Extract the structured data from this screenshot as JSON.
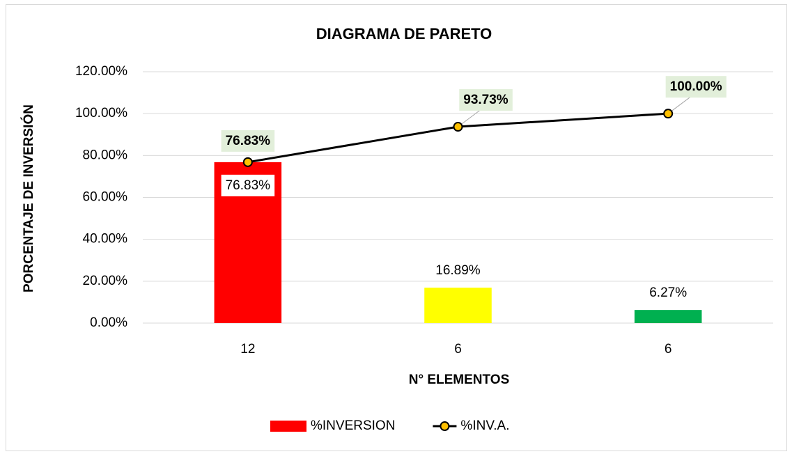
{
  "chart_data": {
    "type": "bar",
    "title": "DIAGRAMA DE PARETO",
    "y_label": "PORCENTAJE DE INVERSIÓN",
    "x_label": "N° ELEMENTOS",
    "categories": [
      "12",
      "6",
      "6"
    ],
    "series": [
      {
        "name": "%INVERSION",
        "type": "bar",
        "colors": [
          "#ff0000",
          "#ffff00",
          "#00b050"
        ],
        "values": [
          76.83,
          16.89,
          6.27
        ],
        "value_labels": [
          "76.83%",
          "16.89%",
          "6.27%"
        ]
      },
      {
        "name": "%INV.A.",
        "type": "line",
        "color": "#000000",
        "marker_color": "#ffc000",
        "values": [
          76.83,
          93.73,
          100
        ],
        "value_labels": [
          "76.83%",
          "93.73%",
          "100.00%"
        ]
      }
    ],
    "ylim": [
      0,
      120
    ],
    "yticks": [
      {
        "value": 0,
        "label": "0.00%"
      },
      {
        "value": 20,
        "label": "20.00%"
      },
      {
        "value": 40,
        "label": "40.00%"
      },
      {
        "value": 60,
        "label": "60.00%"
      },
      {
        "value": 80,
        "label": "80.00%"
      },
      {
        "value": 100,
        "label": "100.00%"
      },
      {
        "value": 120,
        "label": "120.00%"
      }
    ],
    "grid": true,
    "legend": "bottom"
  }
}
